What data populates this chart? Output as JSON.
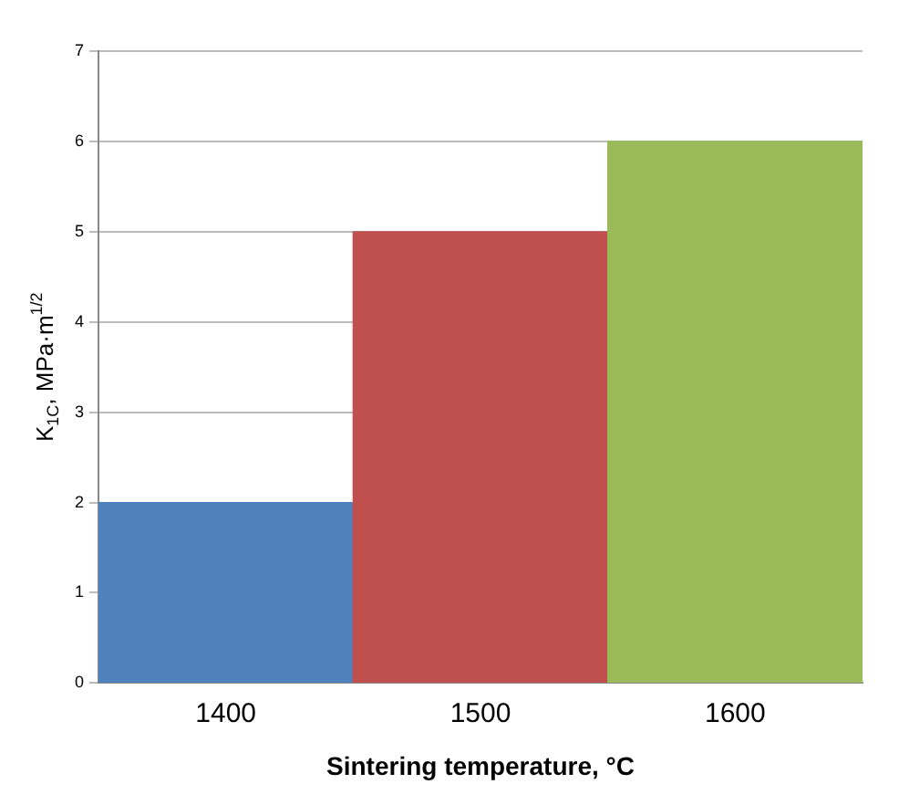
{
  "chart_data": {
    "type": "bar",
    "xlabel": "Sintering temperature, °C",
    "ylabel": "K$_{1C}$, MPa·m$^{1/2}$",
    "categories": [
      "1400",
      "1500",
      "1600"
    ],
    "values": [
      2,
      5,
      6
    ],
    "colors": [
      "#4f81bd",
      "#c0504d",
      "#9bbb59"
    ],
    "ylim": [
      0,
      7
    ],
    "yticks": [
      0,
      1,
      2,
      3,
      4,
      5,
      6,
      7
    ],
    "grid": "y",
    "legend": false
  }
}
